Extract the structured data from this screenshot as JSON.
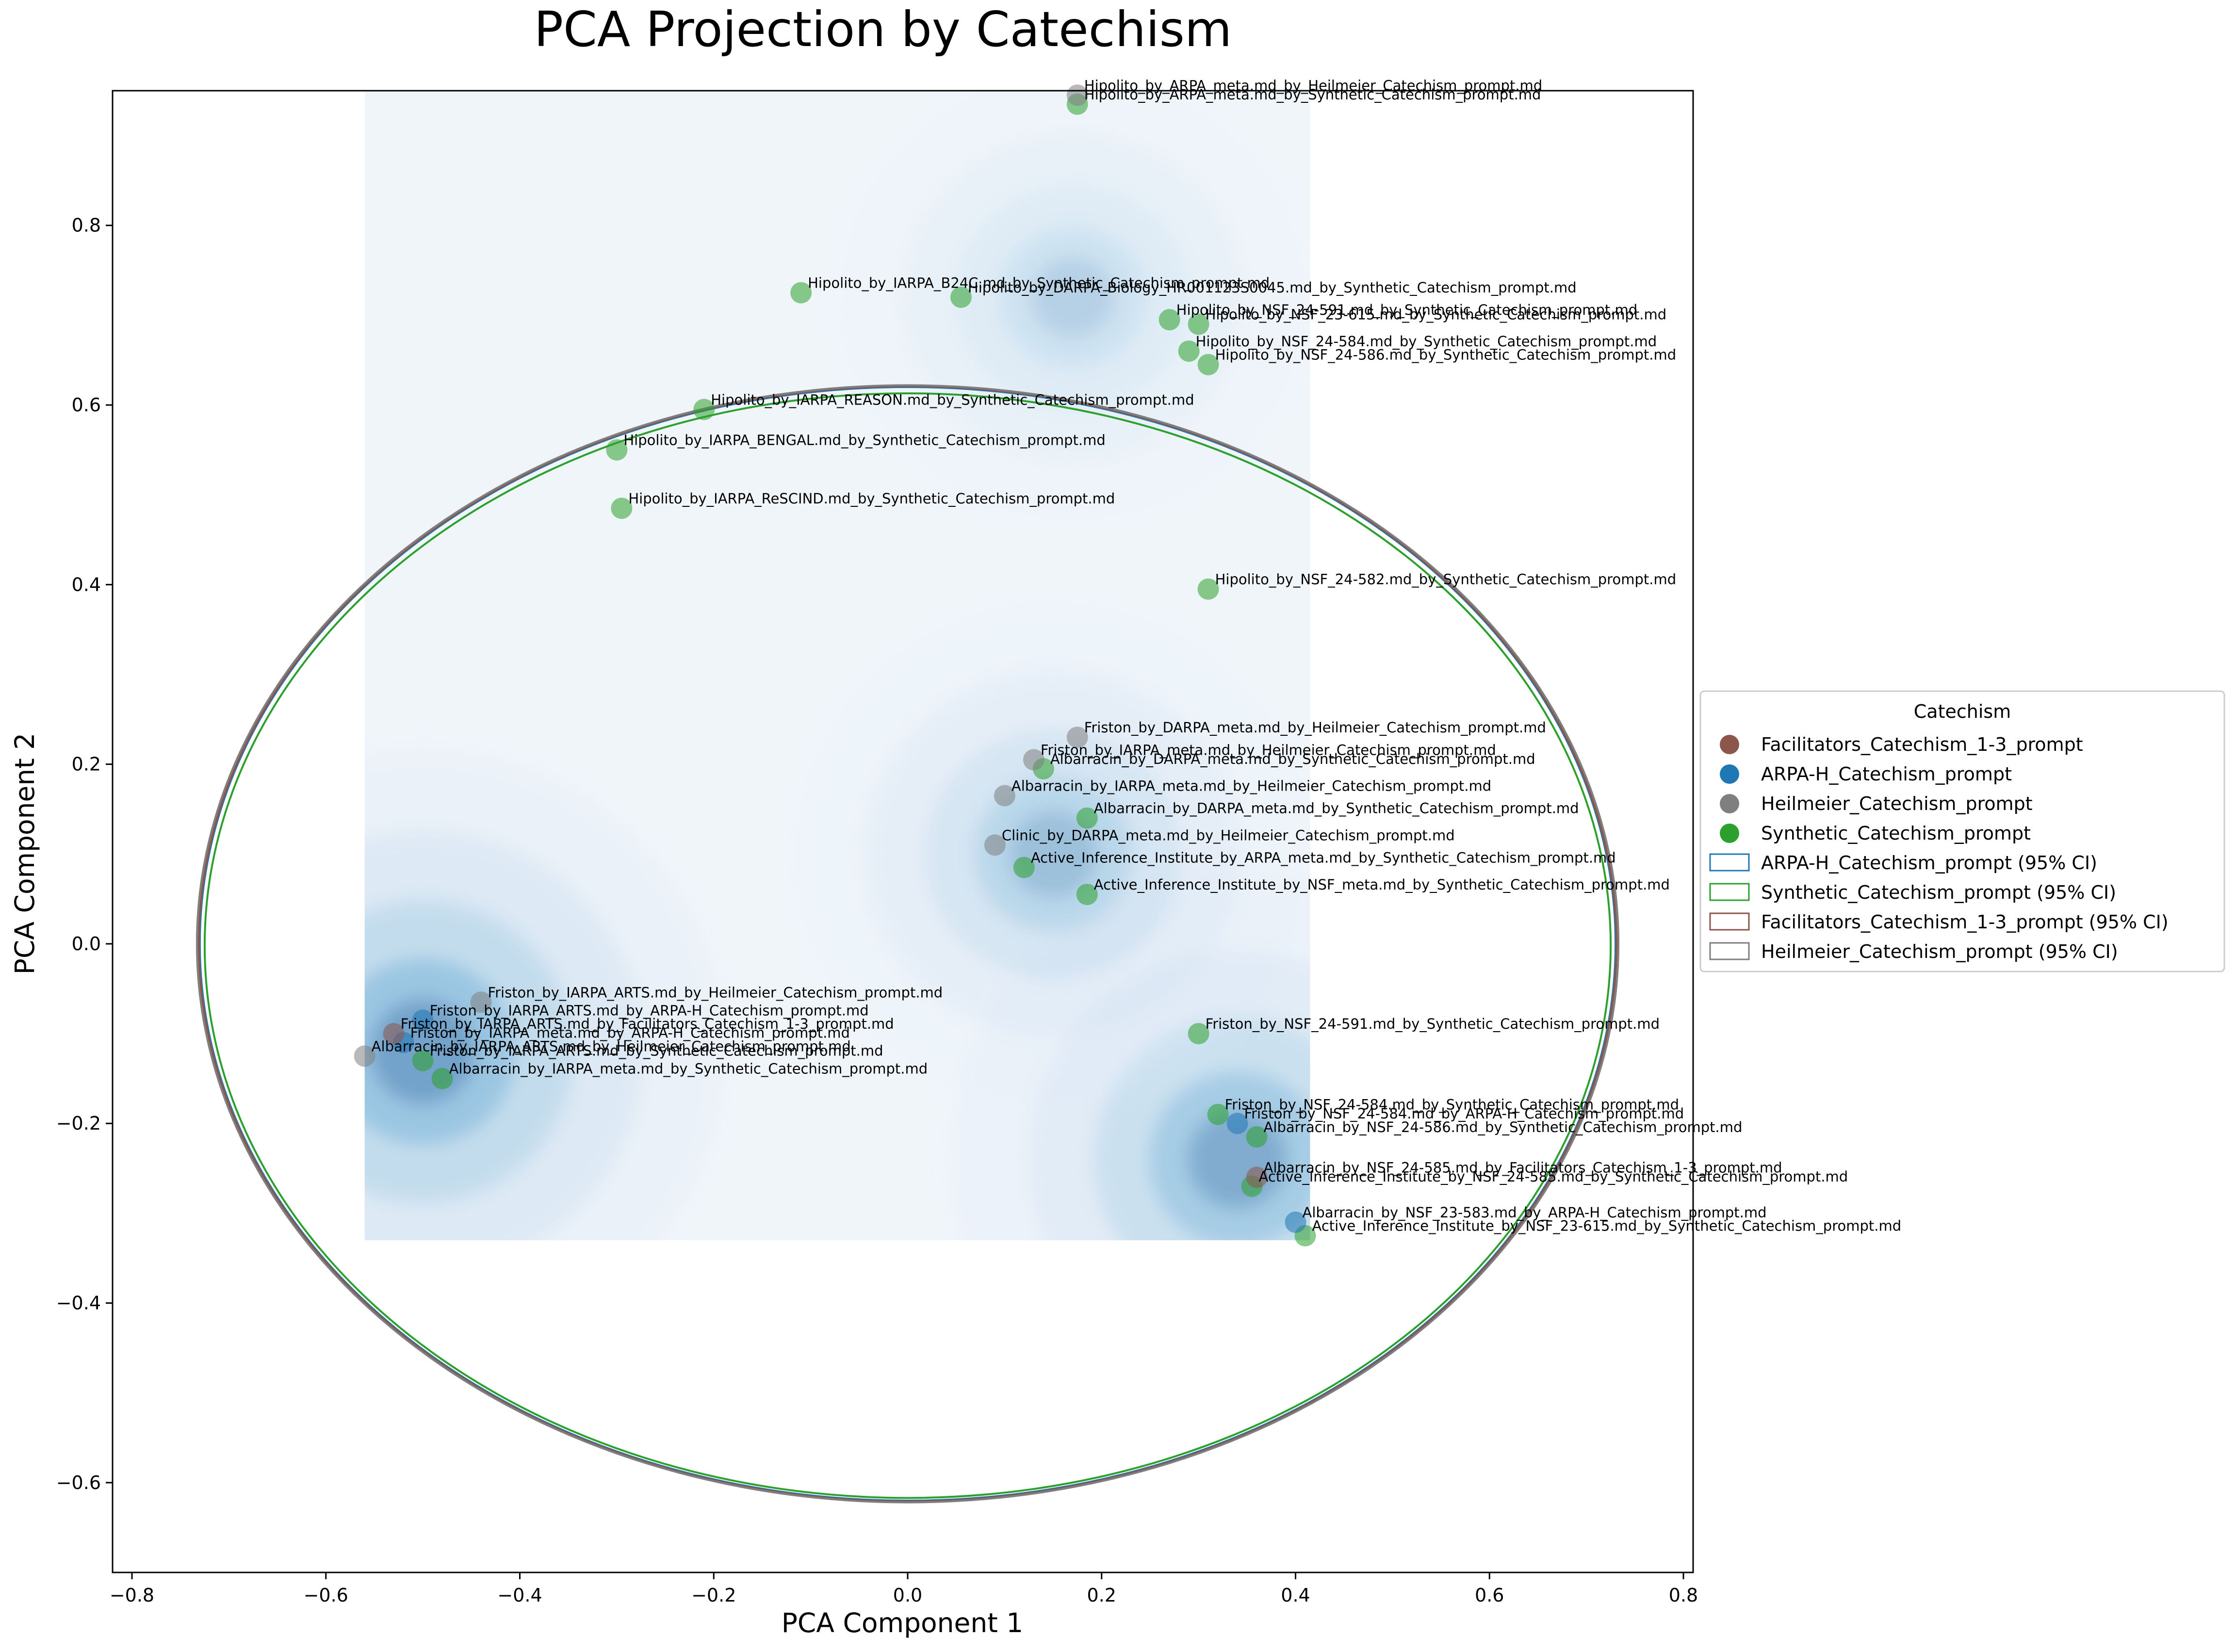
{
  "chart_data": {
    "type": "scatter",
    "title": "PCA Projection by Catechism",
    "xlabel": "PCA Component 1",
    "ylabel": "PCA Component 2",
    "xlim": [
      -0.82,
      0.81
    ],
    "ylim": [
      -0.7,
      0.95
    ],
    "xticks": [
      -0.8,
      -0.6,
      -0.4,
      -0.2,
      0.0,
      0.2,
      0.4,
      0.6,
      0.8
    ],
    "xtick_labels": [
      "−0.8",
      "−0.6",
      "−0.4",
      "−0.2",
      "0.0",
      "0.2",
      "0.4",
      "0.6",
      "0.8"
    ],
    "yticks": [
      -0.6,
      -0.4,
      -0.2,
      0.0,
      0.2,
      0.4,
      0.6,
      0.8
    ],
    "ytick_labels": [
      "−0.6",
      "−0.4",
      "−0.2",
      "0.0",
      "0.2",
      "0.4",
      "0.6",
      "0.8"
    ],
    "grid": false,
    "legend": {
      "title": "Catechism",
      "placement": "center-right outside",
      "entries": [
        {
          "label": "Facilitators_Catechism_1-3_prompt",
          "kind": "marker",
          "color": "#8c564b"
        },
        {
          "label": "ARPA-H_Catechism_prompt",
          "kind": "marker",
          "color": "#1f77b4"
        },
        {
          "label": "Heilmeier_Catechism_prompt",
          "kind": "marker",
          "color": "#7f7f7f"
        },
        {
          "label": "Synthetic_Catechism_prompt",
          "kind": "marker",
          "color": "#2ca02c"
        },
        {
          "label": "ARPA-H_Catechism_prompt (95% CI)",
          "kind": "patch",
          "color": "#1f77b4"
        },
        {
          "label": "Synthetic_Catechism_prompt (95% CI)",
          "kind": "patch",
          "color": "#2ca02c"
        },
        {
          "label": "Facilitators_Catechism_1-3_prompt (95% CI)",
          "kind": "patch",
          "color": "#8c564b"
        },
        {
          "label": "Heilmeier_Catechism_prompt (95% CI)",
          "kind": "patch",
          "color": "#7f7f7f"
        }
      ]
    },
    "ellipses": [
      {
        "name": "ARPA-H_Catechism_prompt (95% CI)",
        "cx": 0.0,
        "cy": 0.0,
        "rx": 0.73,
        "ry": 0.62,
        "color": "#1f77b4"
      },
      {
        "name": "Synthetic_Catechism_prompt (95% CI)",
        "cx": 0.0,
        "cy": -0.002,
        "rx": 0.725,
        "ry": 0.615,
        "color": "#2ca02c"
      },
      {
        "name": "Facilitators_Catechism_1-3_prompt (95% CI)",
        "cx": 0.0,
        "cy": 0.0,
        "rx": 0.731,
        "ry": 0.621,
        "color": "#8c564b"
      },
      {
        "name": "Heilmeier_Catechism_prompt (95% CI)",
        "cx": 0.0,
        "cy": 0.0,
        "rx": 0.733,
        "ry": 0.622,
        "color": "#7f7f7f"
      }
    ],
    "density_extent": {
      "x": [
        -0.56,
        0.415
      ],
      "y": [
        -0.33,
        0.95
      ]
    },
    "density_peaks": [
      {
        "x": -0.5,
        "y": -0.12,
        "strength": 1.0
      },
      {
        "x": 0.34,
        "y": -0.24,
        "strength": 0.85
      },
      {
        "x": 0.15,
        "y": 0.1,
        "strength": 0.55
      },
      {
        "x": 0.17,
        "y": 0.72,
        "strength": 0.35
      }
    ],
    "series": [
      {
        "name": "Synthetic_Catechism_prompt",
        "color": "#2ca02c",
        "points": [
          {
            "x": 0.175,
            "y": 0.935,
            "label": "Hipolito_by_ARPA_meta.md_by_Synthetic_Catechism_prompt.md"
          },
          {
            "x": -0.11,
            "y": 0.725,
            "label": "Hipolito_by_IARPA_B24C.md_by_Synthetic_Catechism_prompt.md"
          },
          {
            "x": 0.055,
            "y": 0.72,
            "label": "Hipolito_by_DARPA_Biology_HR001123S0045.md_by_Synthetic_Catechism_prompt.md"
          },
          {
            "x": 0.27,
            "y": 0.695,
            "label": "Hipolito_by_NSF_24-591.md_by_Synthetic_Catechism_prompt.md"
          },
          {
            "x": 0.3,
            "y": 0.69,
            "label": "Hipolito_by_NSF_23-615.md_by_Synthetic_Catechism_prompt.md"
          },
          {
            "x": 0.29,
            "y": 0.66,
            "label": "Hipolito_by_NSF_24-584.md_by_Synthetic_Catechism_prompt.md"
          },
          {
            "x": 0.31,
            "y": 0.645,
            "label": "Hipolito_by_NSF_24-586.md_by_Synthetic_Catechism_prompt.md"
          },
          {
            "x": -0.21,
            "y": 0.595,
            "label": "Hipolito_by_IARPA_REASON.md_by_Synthetic_Catechism_prompt.md"
          },
          {
            "x": -0.3,
            "y": 0.55,
            "label": "Hipolito_by_IARPA_BENGAL.md_by_Synthetic_Catechism_prompt.md"
          },
          {
            "x": -0.295,
            "y": 0.485,
            "label": "Hipolito_by_IARPA_ReSCIND.md_by_Synthetic_Catechism_prompt.md"
          },
          {
            "x": 0.31,
            "y": 0.395,
            "label": "Hipolito_by_NSF_24-582.md_by_Synthetic_Catechism_prompt.md"
          },
          {
            "x": 0.14,
            "y": 0.195,
            "label": "Albarracin_by_DARPA_meta.md_by_Synthetic_Catechism_prompt.md"
          },
          {
            "x": 0.185,
            "y": 0.14,
            "label": "Albarracin_by_DARPA_meta.md_by_Synthetic_Catechism_prompt.md"
          },
          {
            "x": 0.12,
            "y": 0.085,
            "label": "Active_Inference_Institute_by_ARPA_meta.md_by_Synthetic_Catechism_prompt.md"
          },
          {
            "x": 0.185,
            "y": 0.055,
            "label": "Active_Inference_Institute_by_NSF_meta.md_by_Synthetic_Catechism_prompt.md"
          },
          {
            "x": -0.5,
            "y": -0.13,
            "label": "Friston_by_IARPA_ARTS.md_by_Synthetic_Catechism_prompt.md"
          },
          {
            "x": -0.48,
            "y": -0.15,
            "label": "Albarracin_by_IARPA_meta.md_by_Synthetic_Catechism_prompt.md"
          },
          {
            "x": 0.3,
            "y": -0.1,
            "label": "Friston_by_NSF_24-591.md_by_Synthetic_Catechism_prompt.md"
          },
          {
            "x": 0.32,
            "y": -0.19,
            "label": "Friston_by_NSF_24-584.md_by_Synthetic_Catechism_prompt.md"
          },
          {
            "x": 0.36,
            "y": -0.215,
            "label": "Albarracin_by_NSF_24-586.md_by_Synthetic_Catechism_prompt.md"
          },
          {
            "x": 0.355,
            "y": -0.27,
            "label": "Active_Inference_Institute_by_NSF_24-585.md_by_Synthetic_Catechism_prompt.md"
          },
          {
            "x": 0.41,
            "y": -0.325,
            "label": "Active_Inference_Institute_by_NSF_23-615.md_by_Synthetic_Catechism_prompt.md"
          }
        ]
      },
      {
        "name": "Heilmeier_Catechism_prompt",
        "color": "#7f7f7f",
        "points": [
          {
            "x": 0.175,
            "y": 0.945,
            "label": "Hipolito_by_ARPA_meta.md_by_Heilmeier_Catechism_prompt.md"
          },
          {
            "x": 0.175,
            "y": 0.23,
            "label": "Friston_by_DARPA_meta.md_by_Heilmeier_Catechism_prompt.md"
          },
          {
            "x": 0.13,
            "y": 0.205,
            "label": "Friston_by_IARPA_meta.md_by_Heilmeier_Catechism_prompt.md"
          },
          {
            "x": 0.1,
            "y": 0.165,
            "label": "Albarracin_by_IARPA_meta.md_by_Heilmeier_Catechism_prompt.md"
          },
          {
            "x": 0.09,
            "y": 0.11,
            "label": "Clinic_by_DARPA_meta.md_by_Heilmeier_Catechism_prompt.md"
          },
          {
            "x": -0.56,
            "y": -0.125,
            "label": "Albarracin_by_IARPA_ARTS.md_by_Heilmeier_Catechism_prompt.md"
          },
          {
            "x": -0.44,
            "y": -0.065,
            "label": "Friston_by_IARPA_ARTS.md_by_Heilmeier_Catechism_prompt.md"
          }
        ]
      },
      {
        "name": "ARPA-H_Catechism_prompt",
        "color": "#1f77b4",
        "points": [
          {
            "x": -0.5,
            "y": -0.085,
            "label": "Friston_by_IARPA_ARTS.md_by_ARPA-H_Catechism_prompt.md"
          },
          {
            "x": -0.52,
            "y": -0.11,
            "label": "Friston_by_IARPA_meta.md_by_ARPA-H_Catechism_prompt.md"
          },
          {
            "x": 0.34,
            "y": -0.2,
            "label": "Friston_by_NSF_24-584.md_by_ARPA-H_Catechism_prompt.md"
          },
          {
            "x": 0.4,
            "y": -0.31,
            "label": "Albarracin_by_NSF_23-583.md_by_ARPA-H_Catechism_prompt.md"
          }
        ]
      },
      {
        "name": "Facilitators_Catechism_1-3_prompt",
        "color": "#8c564b",
        "points": [
          {
            "x": -0.53,
            "y": -0.1,
            "label": "Friston_by_IARPA_ARTS.md_by_Facilitators_Catechism_1-3_prompt.md"
          },
          {
            "x": 0.36,
            "y": -0.26,
            "label": "Albarracin_by_NSF_24-585.md_by_Facilitators_Catechism_1-3_prompt.md"
          }
        ]
      }
    ]
  }
}
